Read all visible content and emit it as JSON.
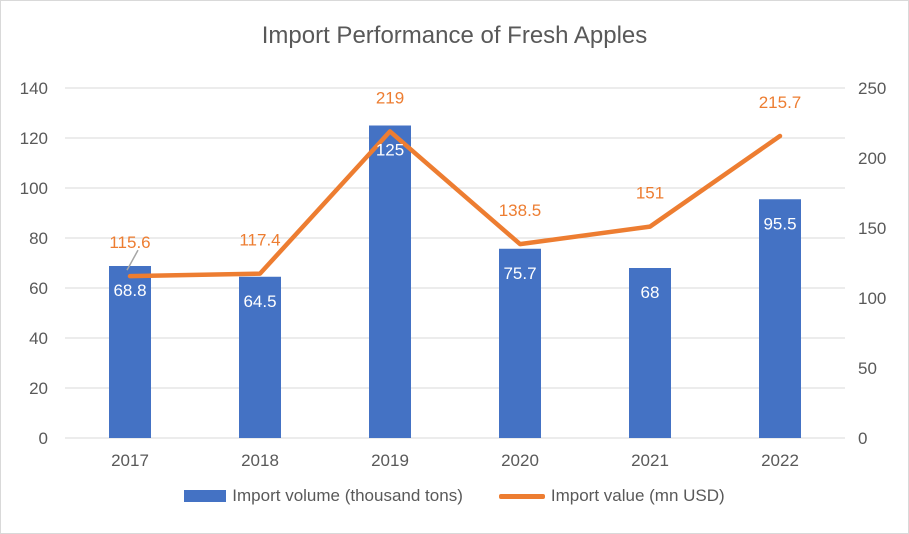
{
  "chart_data": {
    "type": "bar",
    "title": "Import Performance of Fresh Apples",
    "categories": [
      "2017",
      "2018",
      "2019",
      "2020",
      "2021",
      "2022"
    ],
    "series": [
      {
        "name": "Import volume (thousand tons)",
        "type": "bar",
        "axis": "left",
        "color": "#4472c4",
        "values": [
          68.8,
          64.5,
          125,
          75.7,
          68,
          95.5
        ],
        "labels": [
          "68.8",
          "64.5",
          "125",
          "75.7",
          "68",
          "95.5"
        ]
      },
      {
        "name": "Import value (mn USD)",
        "type": "line",
        "axis": "right",
        "color": "#ed7d31",
        "values": [
          115.6,
          117.4,
          219,
          138.5,
          151,
          215.7
        ],
        "labels": [
          "115.6",
          "117.4",
          "219",
          "138.5",
          "151",
          "215.7"
        ]
      }
    ],
    "y_left": {
      "min": 0,
      "max": 140,
      "step": 20,
      "ticks": [
        "0",
        "20",
        "40",
        "60",
        "80",
        "100",
        "120",
        "140"
      ]
    },
    "y_right": {
      "min": 0,
      "max": 250,
      "step": 50,
      "ticks": [
        "0",
        "50",
        "100",
        "150",
        "200",
        "250"
      ]
    },
    "grid": true,
    "legend_position": "bottom"
  }
}
